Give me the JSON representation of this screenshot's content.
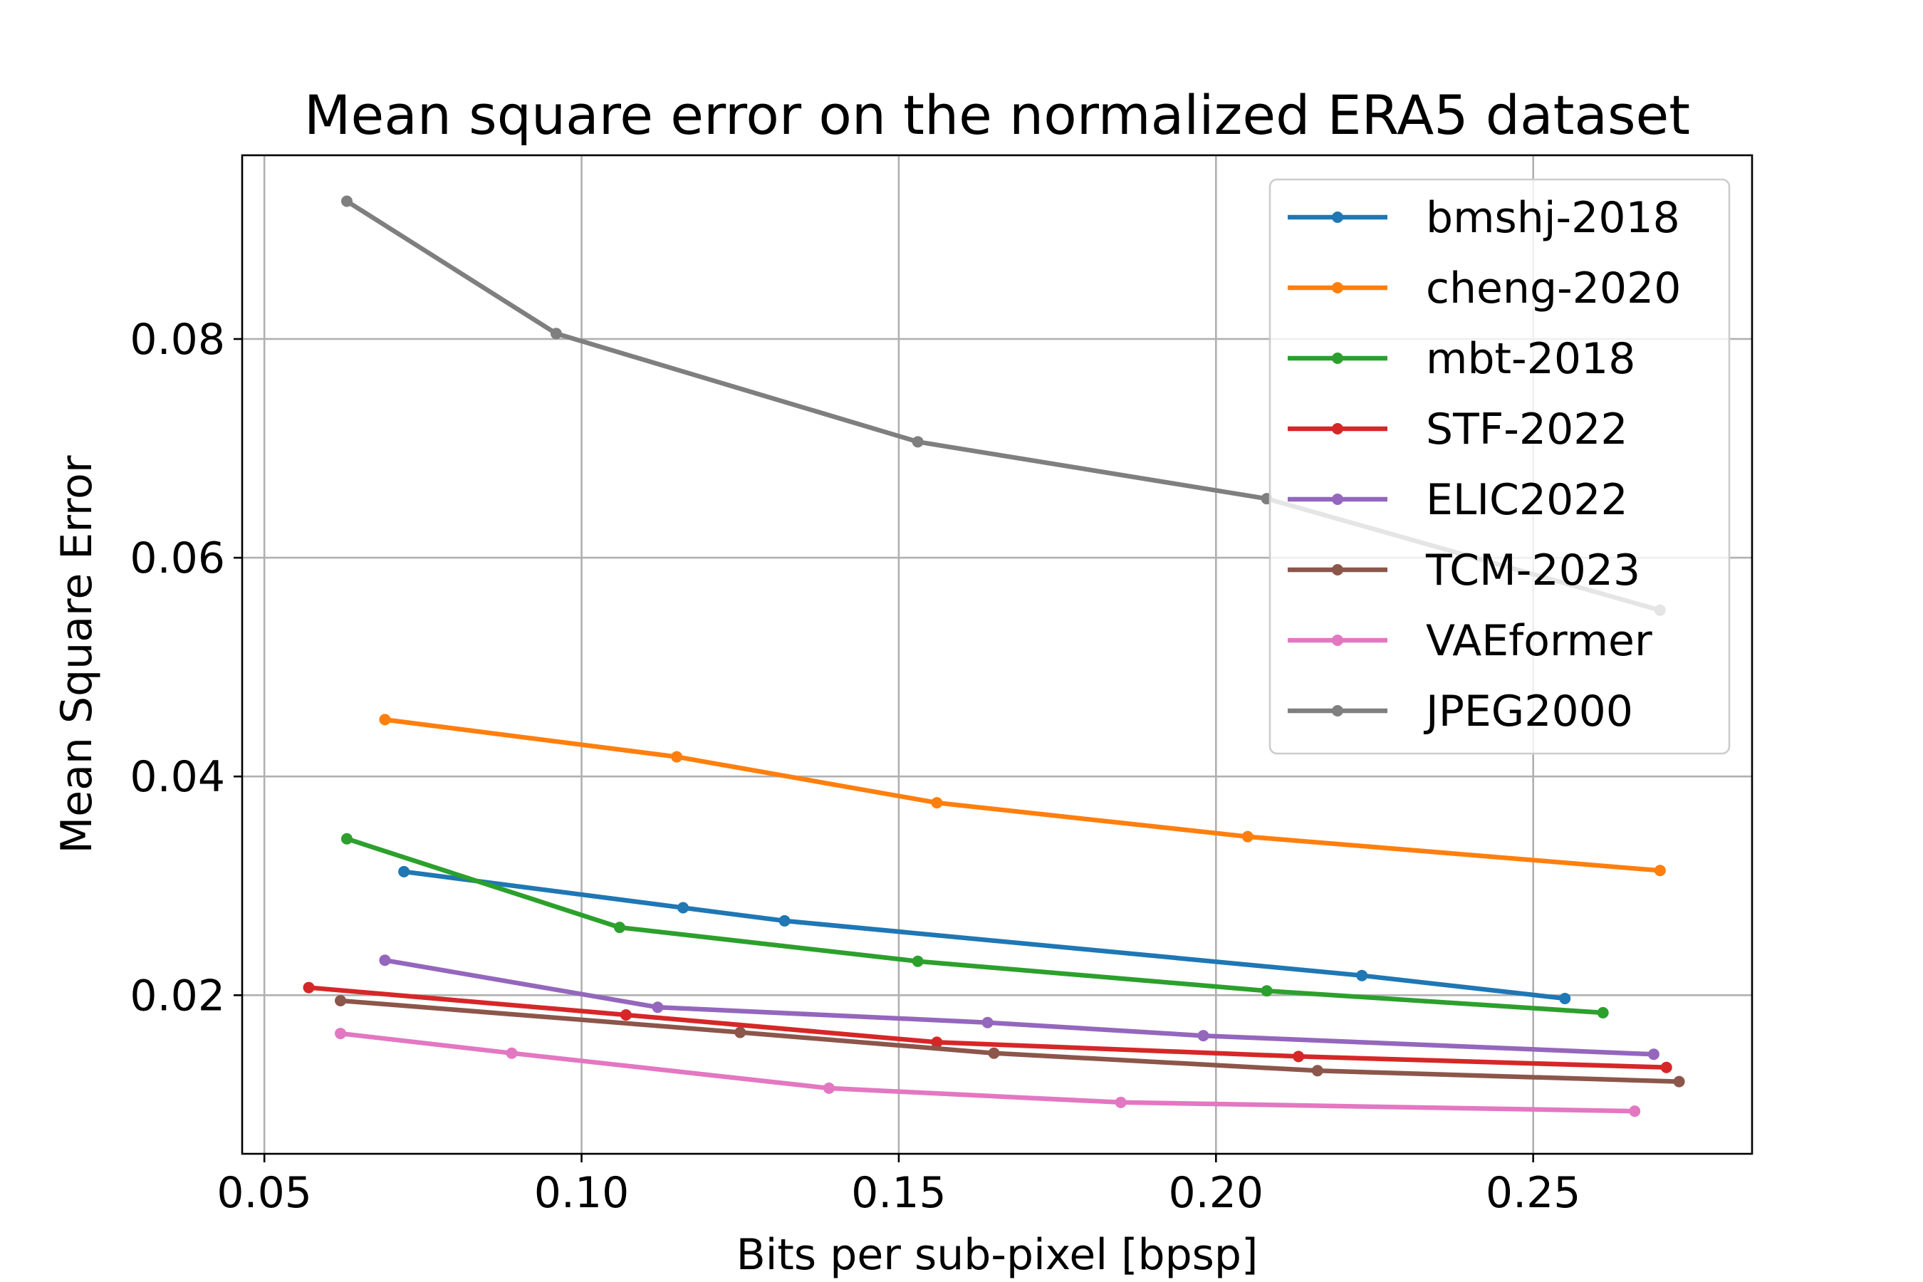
{
  "chart_data": {
    "type": "line",
    "title": "Mean square error on the normalized ERA5 dataset",
    "xlabel": "Bits per sub-pixel [bpsp]",
    "ylabel": "Mean Square Error",
    "xlim": [
      0.0465,
      0.2845
    ],
    "ylim": [
      0.0055,
      0.0968
    ],
    "xticks": [
      0.05,
      0.1,
      0.15,
      0.2,
      0.25
    ],
    "xtick_labels": [
      "0.05",
      "0.10",
      "0.15",
      "0.20",
      "0.25"
    ],
    "yticks": [
      0.02,
      0.04,
      0.06,
      0.08
    ],
    "ytick_labels": [
      "0.02",
      "0.04",
      "0.06",
      "0.08"
    ],
    "grid": true,
    "legend_position": "upper right",
    "series": [
      {
        "name": "bmshj-2018",
        "color": "#1f77b4",
        "x": [
          0.072,
          0.116,
          0.132,
          0.223,
          0.255
        ],
        "y": [
          0.0313,
          0.028,
          0.0268,
          0.0218,
          0.0197
        ]
      },
      {
        "name": "cheng-2020",
        "color": "#ff7f0e",
        "x": [
          0.069,
          0.115,
          0.156,
          0.205,
          0.27
        ],
        "y": [
          0.0452,
          0.0418,
          0.0376,
          0.0345,
          0.0314
        ]
      },
      {
        "name": "mbt-2018",
        "color": "#2ca02c",
        "x": [
          0.063,
          0.106,
          0.153,
          0.208,
          0.261
        ],
        "y": [
          0.0343,
          0.0262,
          0.0231,
          0.0204,
          0.0184
        ]
      },
      {
        "name": "STF-2022",
        "color": "#d62728",
        "x": [
          0.057,
          0.107,
          0.156,
          0.213,
          0.271
        ],
        "y": [
          0.0207,
          0.0182,
          0.0157,
          0.0144,
          0.0134
        ]
      },
      {
        "name": "ELIC2022",
        "color": "#9467bd",
        "x": [
          0.069,
          0.112,
          0.164,
          0.198,
          0.269
        ],
        "y": [
          0.0232,
          0.0189,
          0.0175,
          0.0163,
          0.0146
        ]
      },
      {
        "name": "TCM-2023",
        "color": "#8c564b",
        "x": [
          0.062,
          0.125,
          0.165,
          0.216,
          0.273
        ],
        "y": [
          0.0195,
          0.0166,
          0.0147,
          0.0131,
          0.0121
        ]
      },
      {
        "name": "VAEformer",
        "color": "#e377c2",
        "x": [
          0.062,
          0.089,
          0.139,
          0.185,
          0.266
        ],
        "y": [
          0.0165,
          0.0147,
          0.0115,
          0.0102,
          0.0094
        ]
      },
      {
        "name": "JPEG2000",
        "color": "#7f7f7f",
        "x": [
          0.063,
          0.096,
          0.153,
          0.208,
          0.27
        ],
        "y": [
          0.0926,
          0.0805,
          0.0706,
          0.0654,
          0.0552
        ]
      }
    ]
  }
}
